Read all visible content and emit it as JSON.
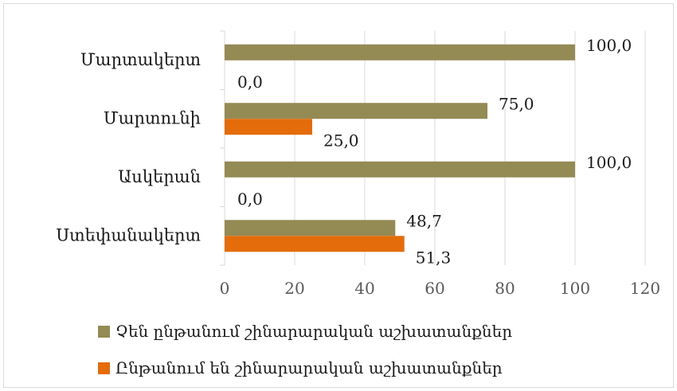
{
  "chart_data": {
    "type": "bar",
    "orientation": "horizontal",
    "categories": [
      "Մարտակերտ",
      "Մարտունի",
      "Ասկերան",
      "Ստեփանակերտ"
    ],
    "series": [
      {
        "name": "Չեն ընթանում շինարարական աշխատանքներ",
        "color": "#948a54",
        "values": [
          100.0,
          75.0,
          100.0,
          48.7
        ],
        "labels": [
          "100,0",
          "75,0",
          "100,0",
          "48,7"
        ]
      },
      {
        "name": "Ընթանում են շինարարական աշխատանքներ",
        "color": "#e46c0a",
        "values": [
          0.0,
          25.0,
          0.0,
          51.3
        ],
        "labels": [
          "0,0",
          "25,0",
          "0,0",
          "51,3"
        ]
      }
    ],
    "xlim": [
      0,
      120
    ],
    "xticks": [
      "0",
      "20",
      "40",
      "60",
      "80",
      "100",
      "120"
    ],
    "grid": true,
    "legend_position": "bottom"
  }
}
